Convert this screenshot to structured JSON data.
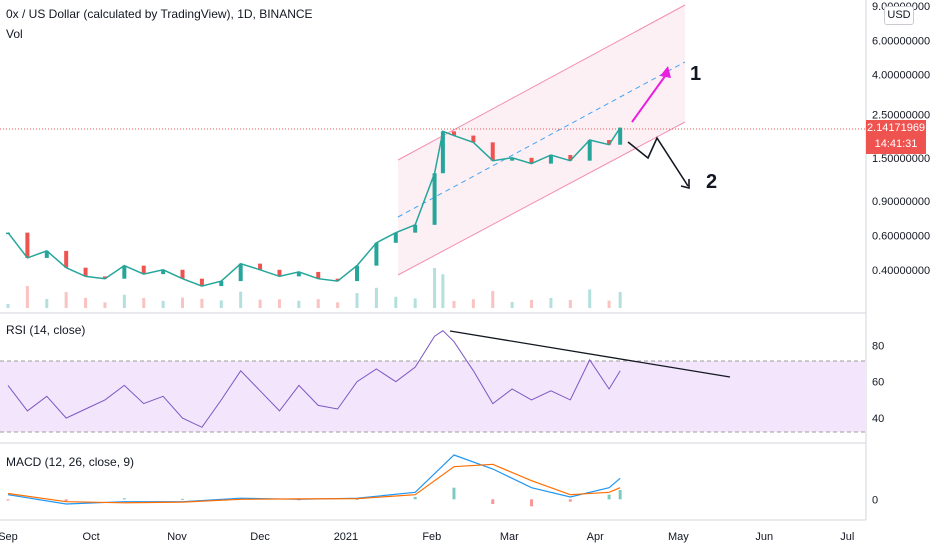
{
  "header": {
    "symbol_title": "0x / US Dollar (calculated by TradingView), 1D, BINANCE",
    "vol_label": "Vol"
  },
  "currency_button": "USD",
  "price_badge": {
    "price": "2.14171969",
    "countdown": "14:41:31"
  },
  "annotations": {
    "scenario_1": "1",
    "scenario_2": "2"
  },
  "colors": {
    "up": "#26a69a",
    "down": "#ef5350",
    "rsi": "#7e57c2",
    "macd": "#2196f3",
    "signal": "#ff6d00",
    "arrow1": "#e91ee0",
    "channel": "#f48fb1",
    "midline": "#42a5f5"
  },
  "chart_data": [
    {
      "type": "candlestick",
      "title": "0x / US Dollar (calculated by TradingView), 1D, BINANCE",
      "y_scale": "log",
      "ylim": [
        0.28,
        9.0
      ],
      "y_ticks": [
        "9.00000000",
        "6.00000000",
        "4.00000000",
        "2.50000000",
        "1.50000000",
        "0.90000000",
        "0.60000000",
        "0.40000000"
      ],
      "y_tick_values": [
        9,
        6,
        4,
        2.5,
        1.5,
        0.9,
        0.6,
        0.4
      ],
      "x_ticks": [
        "Sep",
        "Oct",
        "Nov",
        "Dec",
        "2021",
        "Feb",
        "Mar",
        "Apr",
        "May",
        "Jun",
        "Jul"
      ],
      "series": [
        {
          "name": "Price",
          "points": [
            [
              "Sep 01",
              0.62
            ],
            [
              "Sep 08",
              0.46
            ],
            [
              "Sep 15",
              0.5
            ],
            [
              "Sep 22",
              0.41
            ],
            [
              "Sep 29",
              0.37
            ],
            [
              "Oct 06",
              0.36
            ],
            [
              "Oct 13",
              0.42
            ],
            [
              "Oct 20",
              0.38
            ],
            [
              "Oct 27",
              0.4
            ],
            [
              "Nov 03",
              0.36
            ],
            [
              "Nov 10",
              0.33
            ],
            [
              "Nov 17",
              0.35
            ],
            [
              "Nov 24",
              0.43
            ],
            [
              "Dec 01",
              0.4
            ],
            [
              "Dec 08",
              0.37
            ],
            [
              "Dec 15",
              0.39
            ],
            [
              "Dec 22",
              0.36
            ],
            [
              "Dec 29",
              0.35
            ],
            [
              "Jan 05",
              0.42
            ],
            [
              "Jan 12",
              0.55
            ],
            [
              "Jan 19",
              0.62
            ],
            [
              "Jan 26",
              0.68
            ],
            [
              "Feb 02",
              1.25
            ],
            [
              "Feb 05",
              2.05
            ],
            [
              "Feb 09",
              1.95
            ],
            [
              "Feb 16",
              1.8
            ],
            [
              "Feb 23",
              1.45
            ],
            [
              "Mar 02",
              1.5
            ],
            [
              "Mar 09",
              1.4
            ],
            [
              "Mar 16",
              1.55
            ],
            [
              "Mar 23",
              1.45
            ],
            [
              "Mar 30",
              1.85
            ],
            [
              "Apr 06",
              1.75
            ],
            [
              "Apr 10",
              2.14
            ]
          ]
        }
      ]
    },
    {
      "type": "line",
      "title": "RSI (14, close)",
      "ylim": [
        28,
        95
      ],
      "y_ticks": [
        "80",
        "60",
        "40"
      ],
      "y_tick_values": [
        80,
        60,
        40
      ],
      "bands": [
        70,
        30
      ],
      "series": [
        {
          "name": "RSI",
          "points": [
            [
              "Sep 01",
              58
            ],
            [
              "Sep 08",
              44
            ],
            [
              "Sep 15",
              52
            ],
            [
              "Sep 22",
              40
            ],
            [
              "Sep 29",
              45
            ],
            [
              "Oct 06",
              50
            ],
            [
              "Oct 13",
              58
            ],
            [
              "Oct 20",
              48
            ],
            [
              "Oct 27",
              52
            ],
            [
              "Nov 03",
              40
            ],
            [
              "Nov 10",
              35
            ],
            [
              "Nov 17",
              50
            ],
            [
              "Nov 24",
              66
            ],
            [
              "Dec 01",
              55
            ],
            [
              "Dec 08",
              44
            ],
            [
              "Dec 15",
              58
            ],
            [
              "Dec 22",
              47
            ],
            [
              "Dec 29",
              45
            ],
            [
              "Jan 05",
              60
            ],
            [
              "Jan 12",
              67
            ],
            [
              "Jan 19",
              60
            ],
            [
              "Jan 26",
              68
            ],
            [
              "Feb 02",
              85
            ],
            [
              "Feb 05",
              88
            ],
            [
              "Feb 09",
              82
            ],
            [
              "Feb 16",
              66
            ],
            [
              "Feb 23",
              48
            ],
            [
              "Mar 02",
              56
            ],
            [
              "Mar 09",
              50
            ],
            [
              "Mar 16",
              55
            ],
            [
              "Mar 23",
              50
            ],
            [
              "Mar 30",
              72
            ],
            [
              "Apr 06",
              56
            ],
            [
              "Apr 10",
              66
            ]
          ]
        }
      ]
    },
    {
      "type": "line",
      "title": "MACD (12, 26, close, 9)",
      "ylim": [
        -0.08,
        0.22
      ],
      "y_ticks": [
        "0"
      ],
      "y_tick_values": [
        0
      ],
      "series": [
        {
          "name": "MACD",
          "points": [
            [
              "Sep 01",
              0.02
            ],
            [
              "Sep 22",
              -0.02
            ],
            [
              "Oct 13",
              -0.01
            ],
            [
              "Nov 03",
              -0.01
            ],
            [
              "Nov 24",
              0.005
            ],
            [
              "Dec 15",
              0.0
            ],
            [
              "Jan 05",
              0.005
            ],
            [
              "Jan 26",
              0.03
            ],
            [
              "Feb 09",
              0.19
            ],
            [
              "Feb 23",
              0.13
            ],
            [
              "Mar 09",
              0.05
            ],
            [
              "Mar 23",
              0.01
            ],
            [
              "Apr 06",
              0.05
            ],
            [
              "Apr 10",
              0.09
            ]
          ]
        },
        {
          "name": "Signal",
          "points": [
            [
              "Sep 01",
              0.025
            ],
            [
              "Sep 22",
              -0.01
            ],
            [
              "Oct 13",
              -0.015
            ],
            [
              "Nov 03",
              -0.012
            ],
            [
              "Nov 24",
              0.0
            ],
            [
              "Dec 15",
              0.002
            ],
            [
              "Jan 05",
              0.003
            ],
            [
              "Jan 26",
              0.02
            ],
            [
              "Feb 09",
              0.14
            ],
            [
              "Feb 23",
              0.15
            ],
            [
              "Mar 09",
              0.08
            ],
            [
              "Mar 23",
              0.02
            ],
            [
              "Apr 06",
              0.03
            ],
            [
              "Apr 10",
              0.05
            ]
          ]
        }
      ]
    }
  ]
}
